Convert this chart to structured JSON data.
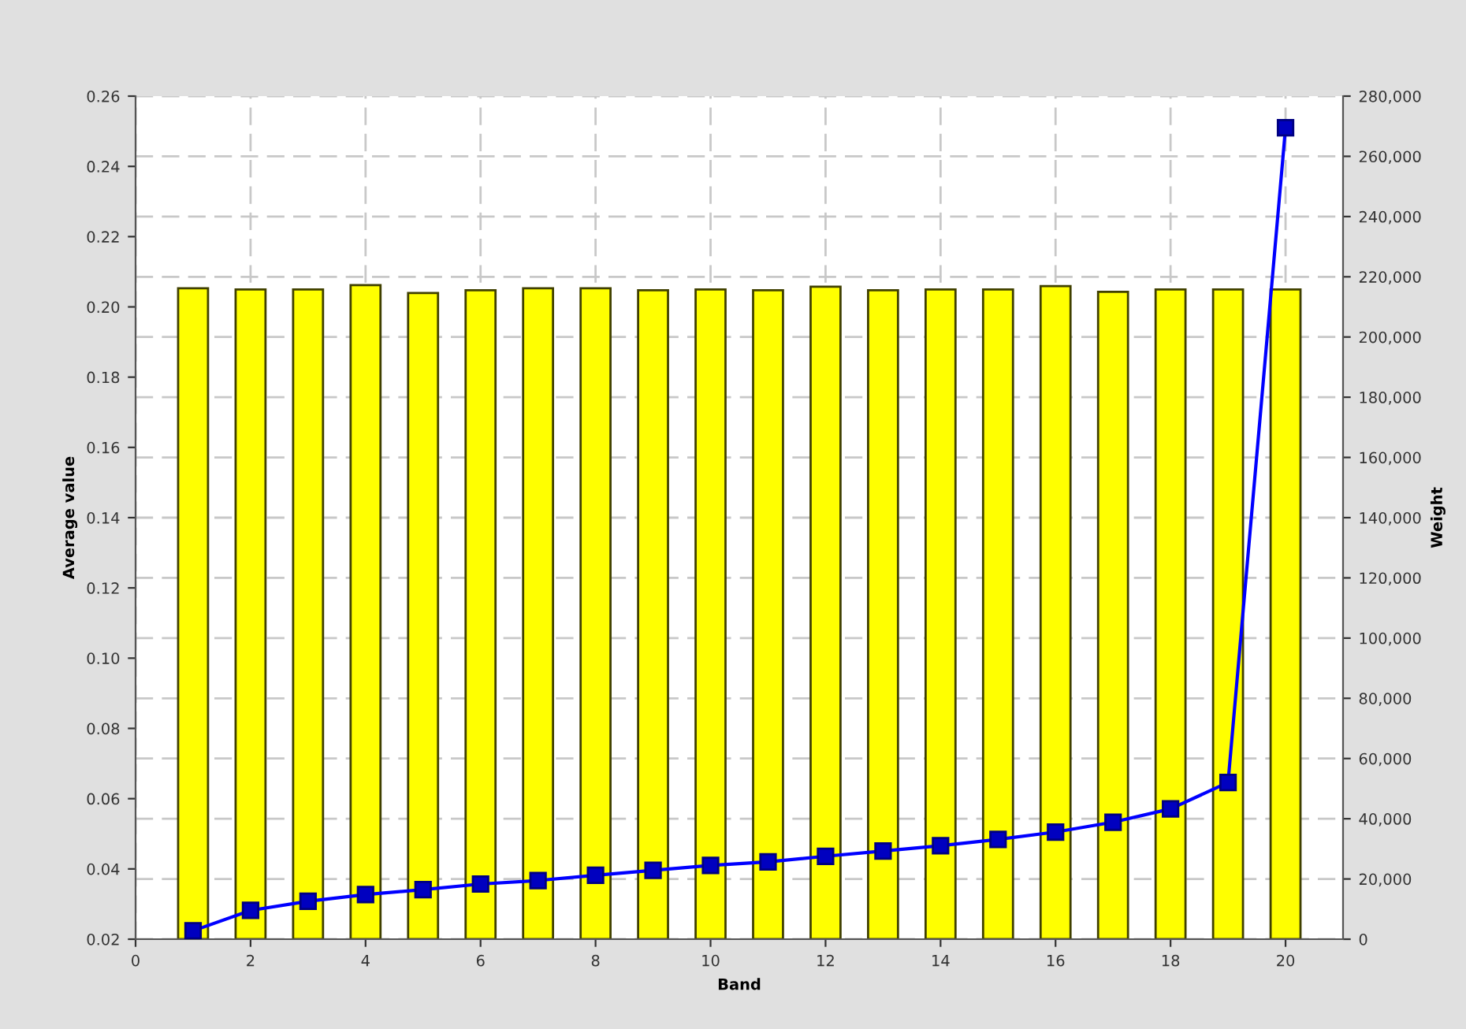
{
  "chart_data": {
    "type": "bar",
    "xlabel": "Band",
    "ylabel": "Average value",
    "y2label": "Weight",
    "x": [
      1,
      2,
      3,
      4,
      5,
      6,
      7,
      8,
      9,
      10,
      11,
      12,
      13,
      14,
      15,
      16,
      17,
      18,
      19,
      20
    ],
    "xlim": [
      0,
      21
    ],
    "xticks": [
      0,
      2,
      4,
      6,
      8,
      10,
      12,
      14,
      16,
      18,
      20
    ],
    "ylim": [
      0.02,
      0.26
    ],
    "yticks": [
      {
        "value": 0.02,
        "label": "0.02"
      },
      {
        "value": 0.04,
        "label": "0.04"
      },
      {
        "value": 0.06,
        "label": "0.06"
      },
      {
        "value": 0.08,
        "label": "0.08"
      },
      {
        "value": 0.1,
        "label": "0.10"
      },
      {
        "value": 0.12,
        "label": "0.12"
      },
      {
        "value": 0.14,
        "label": "0.14"
      },
      {
        "value": 0.16,
        "label": "0.16"
      },
      {
        "value": 0.18,
        "label": "0.18"
      },
      {
        "value": 0.2,
        "label": "0.20"
      },
      {
        "value": 0.22,
        "label": "0.22"
      },
      {
        "value": 0.24,
        "label": "0.24"
      },
      {
        "value": 0.26,
        "label": "0.26"
      }
    ],
    "y2lim": [
      0,
      280000
    ],
    "y2ticks": [
      0,
      {
        "value": 20000,
        "label": "20,000"
      },
      {
        "value": 40000,
        "label": "40,000"
      },
      {
        "value": 60000,
        "label": "60,000"
      },
      {
        "value": 80000,
        "label": "80,000"
      },
      {
        "value": 100000,
        "label": "100,000"
      },
      {
        "value": 120000,
        "label": "120,000"
      },
      {
        "value": 140000,
        "label": "140,000"
      },
      {
        "value": 160000,
        "label": "160,000"
      },
      {
        "value": 180000,
        "label": "180,000"
      },
      {
        "value": 200000,
        "label": "200,000"
      },
      {
        "value": 220000,
        "label": "220,000"
      },
      {
        "value": 240000,
        "label": "240,000"
      },
      {
        "value": 260000,
        "label": "260,000"
      },
      {
        "value": 280000,
        "label": "280,000"
      }
    ],
    "grid": true,
    "legend": false,
    "marker": "square",
    "line_style": "solid",
    "series": [
      {
        "axis": "y2",
        "color": "#ffff00",
        "values": [
          216200,
          215800,
          215800,
          217200,
          214600,
          215500,
          216200,
          216200,
          215500,
          215800,
          215500,
          216700,
          215500,
          215800,
          215800,
          216900,
          215000,
          215800,
          215800,
          215800
        ]
      },
      {
        "type": "line",
        "color": "#0000ff",
        "values": [
          0.0224,
          0.0282,
          0.0308,
          0.0327,
          0.0341,
          0.0357,
          0.0367,
          0.0382,
          0.0396,
          0.041,
          0.042,
          0.0436,
          0.0451,
          0.0466,
          0.0484,
          0.0505,
          0.0533,
          0.0571,
          0.0646,
          0.251
        ]
      }
    ]
  }
}
